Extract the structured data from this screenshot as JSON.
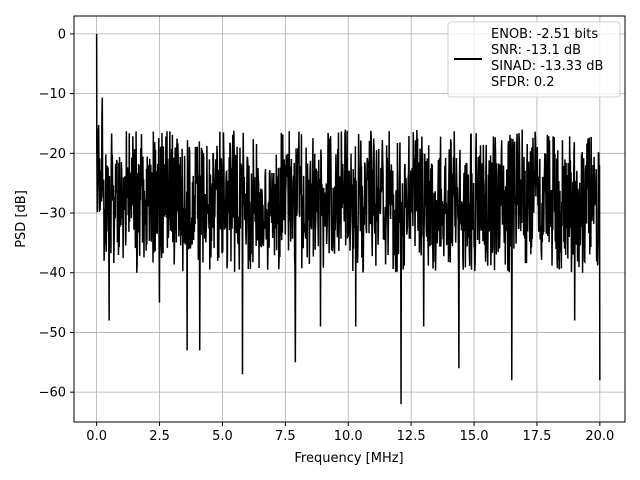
{
  "chart_data": {
    "type": "line",
    "xlabel": "Frequency [MHz]",
    "ylabel": "PSD [dB]",
    "xlim": [
      -0.9,
      21.0
    ],
    "ylim": [
      -65,
      3
    ],
    "x_ticks": [
      0.0,
      2.5,
      5.0,
      7.5,
      10.0,
      12.5,
      15.0,
      17.5,
      20.0
    ],
    "x_tick_labels": [
      "0.0",
      "2.5",
      "5.0",
      "7.5",
      "10.0",
      "12.5",
      "15.0",
      "17.5",
      "20.0"
    ],
    "y_ticks": [
      0,
      -10,
      -20,
      -30,
      -40,
      -50,
      -60
    ],
    "y_tick_labels": [
      "0",
      "−10",
      "−20",
      "−30",
      "−40",
      "−50",
      "−60"
    ],
    "grid": true,
    "legend_position": "top-right",
    "legend": [
      "ENOB: -2.51 bits",
      "SNR: -13.1 dB",
      "SINAD: -13.33 dB",
      "SFDR: 0.2"
    ],
    "series": [
      {
        "color": "#000000",
        "x_start": 0.0,
        "x_end": 20.0,
        "peak": {
          "x": 0.0,
          "y": 0.0
        },
        "envelope_max": -16,
        "envelope_min": -40,
        "typical_band": [
          -36,
          -20
        ],
        "notable_dips": [
          {
            "x": 0.3,
            "y": -38
          },
          {
            "x": 0.5,
            "y": -48
          },
          {
            "x": 1.6,
            "y": -40
          },
          {
            "x": 2.5,
            "y": -45
          },
          {
            "x": 3.6,
            "y": -53
          },
          {
            "x": 4.1,
            "y": -53
          },
          {
            "x": 5.8,
            "y": -57
          },
          {
            "x": 7.9,
            "y": -55
          },
          {
            "x": 8.9,
            "y": -49
          },
          {
            "x": 10.3,
            "y": -49
          },
          {
            "x": 12.1,
            "y": -62
          },
          {
            "x": 13.0,
            "y": -49
          },
          {
            "x": 14.4,
            "y": -56
          },
          {
            "x": 16.5,
            "y": -58
          },
          {
            "x": 19.0,
            "y": -48
          },
          {
            "x": 20.0,
            "y": -58
          }
        ]
      }
    ]
  }
}
